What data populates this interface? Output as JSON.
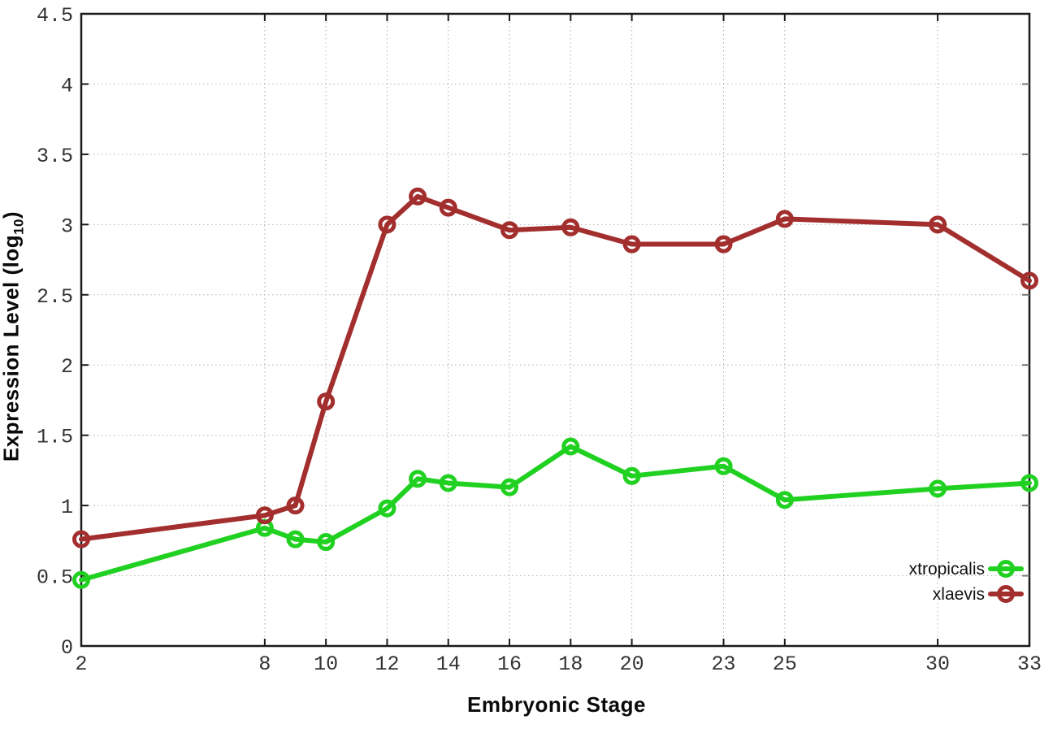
{
  "chart_data": {
    "type": "line",
    "title": "",
    "xlabel": "Embryonic Stage",
    "ylabel": "Expression Level (log10)",
    "ylabel_parts": {
      "main": "Expression Level (log",
      "sub": "10",
      "end": ")"
    },
    "xlim": [
      2,
      33
    ],
    "ylim": [
      0,
      4.5
    ],
    "x_ticks": [
      2,
      8,
      10,
      12,
      14,
      16,
      18,
      20,
      23,
      25,
      30,
      33
    ],
    "y_ticks": [
      0,
      0.5,
      1,
      1.5,
      2,
      2.5,
      3,
      3.5,
      4,
      4.5
    ],
    "grid": true,
    "marker": "open-circle",
    "legend": {
      "position": "inside-bottom-right",
      "entries": [
        "xtropicalis",
        "xlaevis"
      ]
    },
    "x": [
      2,
      8,
      9,
      10,
      12,
      13,
      14,
      16,
      18,
      20,
      23,
      25,
      30,
      33
    ],
    "series": [
      {
        "name": "xtropicalis",
        "color": "#21d121",
        "values": [
          0.47,
          0.84,
          0.76,
          0.74,
          0.98,
          1.19,
          1.16,
          1.13,
          1.42,
          1.21,
          1.28,
          1.04,
          1.12,
          1.16
        ]
      },
      {
        "name": "xlaevis",
        "color": "#a32e2e",
        "values": [
          0.76,
          0.93,
          1.0,
          1.74,
          3.0,
          3.2,
          3.12,
          2.96,
          2.98,
          2.86,
          2.86,
          3.04,
          3.0,
          2.6
        ]
      }
    ]
  },
  "styles": {
    "background": "#ffffff",
    "axis_color": "#1a1a1a",
    "grid_color": "#b3b3b3",
    "tick_label_color": "#333333",
    "legend_text_color": "#111111"
  }
}
